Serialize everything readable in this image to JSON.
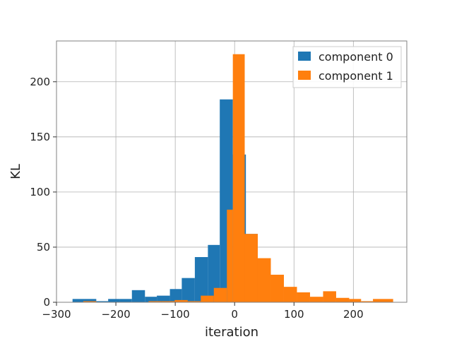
{
  "chart_data": {
    "type": "bar",
    "title": "",
    "xlabel": "iteration",
    "ylabel": "KL",
    "xlim": [
      -300,
      290
    ],
    "ylim": [
      0,
      237
    ],
    "xticks": [
      -300,
      -200,
      -100,
      0,
      100,
      200
    ],
    "yticks": [
      0,
      50,
      100,
      150,
      200
    ],
    "xtick_labels": [
      "−300",
      "−200",
      "−100",
      "0",
      "100",
      "200"
    ],
    "ytick_labels": [
      "0",
      "50",
      "100",
      "150",
      "200"
    ],
    "grid": true,
    "legend_position": "top-right",
    "series": [
      {
        "name": "component 0",
        "color": "#1f77b4",
        "bins": [
          {
            "x0": -273,
            "x1": -253,
            "value": 3
          },
          {
            "x0": -253,
            "x1": -233,
            "value": 3
          },
          {
            "x0": -233,
            "x1": -213,
            "value": 1
          },
          {
            "x0": -213,
            "x1": -193,
            "value": 3
          },
          {
            "x0": -193,
            "x1": -173,
            "value": 3
          },
          {
            "x0": -173,
            "x1": -151,
            "value": 11
          },
          {
            "x0": -151,
            "x1": -131,
            "value": 5
          },
          {
            "x0": -131,
            "x1": -109,
            "value": 6
          },
          {
            "x0": -109,
            "x1": -89,
            "value": 12
          },
          {
            "x0": -89,
            "x1": -67,
            "value": 22
          },
          {
            "x0": -67,
            "x1": -45,
            "value": 41
          },
          {
            "x0": -45,
            "x1": -25,
            "value": 52
          },
          {
            "x0": -25,
            "x1": -3,
            "value": 184
          },
          {
            "x0": -3,
            "x1": 19,
            "value": 134
          },
          {
            "x0": 19,
            "x1": 39,
            "value": 62
          }
        ]
      },
      {
        "name": "component 1",
        "color": "#ff7f0e",
        "bins": [
          {
            "x0": -255,
            "x1": -233,
            "value": 1
          },
          {
            "x0": -233,
            "x1": -211,
            "value": 0
          },
          {
            "x0": -211,
            "x1": -189,
            "value": 0
          },
          {
            "x0": -189,
            "x1": -167,
            "value": 0
          },
          {
            "x0": -167,
            "x1": -145,
            "value": 0
          },
          {
            "x0": -145,
            "x1": -123,
            "value": 1
          },
          {
            "x0": -123,
            "x1": -101,
            "value": 1
          },
          {
            "x0": -101,
            "x1": -79,
            "value": 2
          },
          {
            "x0": -79,
            "x1": -57,
            "value": 1
          },
          {
            "x0": -57,
            "x1": -35,
            "value": 6
          },
          {
            "x0": -35,
            "x1": -13,
            "value": 13
          },
          {
            "x0": -13,
            "x1": -3,
            "value": 84
          },
          {
            "x0": -3,
            "x1": 17,
            "value": 225
          },
          {
            "x0": 17,
            "x1": 39,
            "value": 62
          },
          {
            "x0": 39,
            "x1": 61,
            "value": 40
          },
          {
            "x0": 61,
            "x1": 83,
            "value": 25
          },
          {
            "x0": 83,
            "x1": 105,
            "value": 14
          },
          {
            "x0": 105,
            "x1": 127,
            "value": 9
          },
          {
            "x0": 127,
            "x1": 149,
            "value": 5
          },
          {
            "x0": 149,
            "x1": 171,
            "value": 10
          },
          {
            "x0": 171,
            "x1": 193,
            "value": 4
          },
          {
            "x0": 193,
            "x1": 213,
            "value": 3
          },
          {
            "x0": 213,
            "x1": 233,
            "value": 1
          },
          {
            "x0": 233,
            "x1": 267,
            "value": 3
          }
        ]
      }
    ]
  }
}
